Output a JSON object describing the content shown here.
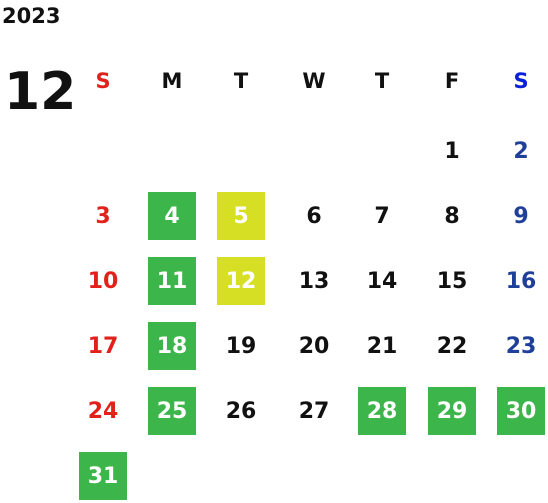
{
  "year": "2023",
  "month": "12",
  "weekdays": [
    "S",
    "M",
    "T",
    "W",
    "T",
    "F",
    "S"
  ],
  "weeks": [
    [
      null,
      null,
      null,
      null,
      null,
      {
        "text": "1",
        "fill": null
      },
      {
        "text": "2",
        "fill": null
      }
    ],
    [
      {
        "text": "3",
        "fill": null
      },
      {
        "text": "4",
        "fill": "#3cb54a"
      },
      {
        "text": "5",
        "fill": "#d6df23"
      },
      {
        "text": "6",
        "fill": null
      },
      {
        "text": "7",
        "fill": null
      },
      {
        "text": "8",
        "fill": null
      },
      {
        "text": "9",
        "fill": null
      }
    ],
    [
      {
        "text": "10",
        "fill": null
      },
      {
        "text": "11",
        "fill": "#3cb54a"
      },
      {
        "text": "12",
        "fill": "#d6df23"
      },
      {
        "text": "13",
        "fill": null
      },
      {
        "text": "14",
        "fill": null
      },
      {
        "text": "15",
        "fill": null
      },
      {
        "text": "16",
        "fill": null
      }
    ],
    [
      {
        "text": "17",
        "fill": null
      },
      {
        "text": "18",
        "fill": "#3cb54a"
      },
      {
        "text": "19",
        "fill": null
      },
      {
        "text": "20",
        "fill": null
      },
      {
        "text": "21",
        "fill": null
      },
      {
        "text": "22",
        "fill": null
      },
      {
        "text": "23",
        "fill": null
      }
    ],
    [
      {
        "text": "24",
        "fill": null
      },
      {
        "text": "25",
        "fill": "#3cb54a"
      },
      {
        "text": "26",
        "fill": null
      },
      {
        "text": "27",
        "fill": null
      },
      {
        "text": "28",
        "fill": "#3cb54a"
      },
      {
        "text": "29",
        "fill": "#3cb54a"
      },
      {
        "text": "30",
        "fill": "#3cb54a"
      }
    ],
    [
      {
        "text": "31",
        "fill": "#3cb54a"
      },
      null,
      null,
      null,
      null,
      null,
      null
    ]
  ]
}
